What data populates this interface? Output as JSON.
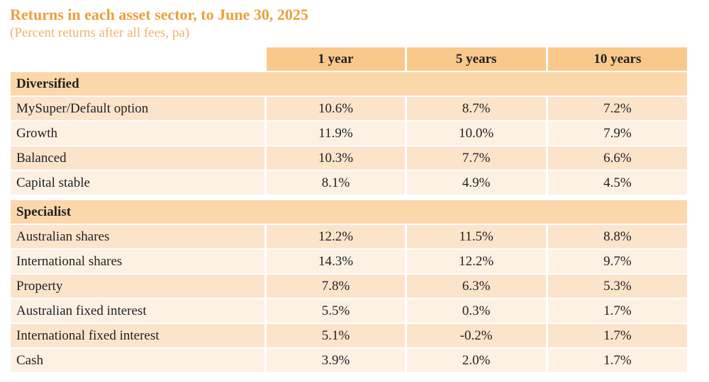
{
  "header": {
    "title": "Returns in each asset sector, to June 30, 2025",
    "subtitle": "(Percent returns after all fees, pa)"
  },
  "table": {
    "columns": [
      "1 year",
      "5 years",
      "10 years"
    ],
    "sections": [
      {
        "name": "Diversified",
        "rows": [
          [
            "MySuper/Default option",
            "10.6%",
            "8.7%",
            "7.2%"
          ],
          [
            "Growth",
            "11.9%",
            "10.0%",
            "7.9%"
          ],
          [
            "Balanced",
            "10.3%",
            "7.7%",
            "6.6%"
          ],
          [
            "Capital stable",
            "8.1%",
            "4.9%",
            "4.5%"
          ]
        ]
      },
      {
        "name": "Specialist",
        "rows": [
          [
            "Australian shares",
            "12.2%",
            "11.5%",
            "8.8%"
          ],
          [
            "International shares",
            "14.3%",
            "12.2%",
            "9.7%"
          ],
          [
            "Property",
            "7.8%",
            "6.3%",
            "5.3%"
          ],
          [
            "Australian fixed interest",
            "5.5%",
            "0.3%",
            "1.7%"
          ],
          [
            "International fixed interest",
            "5.1%",
            "-0.2%",
            "1.7%"
          ],
          [
            "Cash",
            "3.9%",
            "2.0%",
            "1.7%"
          ]
        ]
      }
    ]
  }
}
